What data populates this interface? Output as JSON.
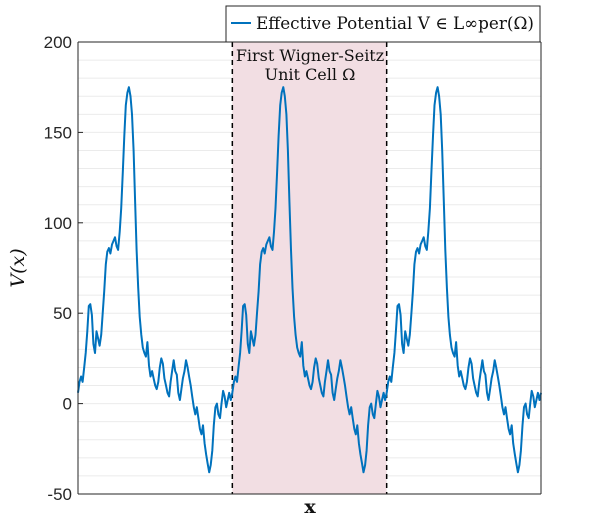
{
  "chart_data": {
    "type": "line",
    "title": "",
    "xlabel": "x",
    "ylabel": "V(x)",
    "ylim": [
      -50,
      200
    ],
    "xlim": [
      0,
      3
    ],
    "yticks": [
      -50,
      0,
      50,
      100,
      150,
      200
    ],
    "ytick_labels": [
      "-50",
      "0",
      "50",
      "100",
      "150",
      "200"
    ],
    "grid": true,
    "legend_position": "top-right",
    "series": [
      {
        "name": "Effective Potential V ∈ L∞per(Ω)",
        "color": "#0072BD",
        "period": 1,
        "points_one_period": [
          [
            0.0,
            6
          ],
          [
            0.01,
            12
          ],
          [
            0.02,
            15
          ],
          [
            0.03,
            12
          ],
          [
            0.04,
            20
          ],
          [
            0.05,
            28
          ],
          [
            0.06,
            40
          ],
          [
            0.07,
            54
          ],
          [
            0.08,
            55
          ],
          [
            0.09,
            49
          ],
          [
            0.1,
            33
          ],
          [
            0.11,
            28
          ],
          [
            0.12,
            40
          ],
          [
            0.13,
            36
          ],
          [
            0.14,
            32
          ],
          [
            0.15,
            38
          ],
          [
            0.16,
            50
          ],
          [
            0.17,
            62
          ],
          [
            0.18,
            77
          ],
          [
            0.19,
            84
          ],
          [
            0.2,
            86
          ],
          [
            0.21,
            83
          ],
          [
            0.22,
            88
          ],
          [
            0.23,
            90
          ],
          [
            0.24,
            92
          ],
          [
            0.25,
            87
          ],
          [
            0.26,
            85
          ],
          [
            0.27,
            95
          ],
          [
            0.28,
            108
          ],
          [
            0.29,
            128
          ],
          [
            0.3,
            148
          ],
          [
            0.31,
            165
          ],
          [
            0.32,
            172
          ],
          [
            0.33,
            175
          ],
          [
            0.34,
            170
          ],
          [
            0.35,
            160
          ],
          [
            0.36,
            140
          ],
          [
            0.37,
            112
          ],
          [
            0.38,
            85
          ],
          [
            0.39,
            64
          ],
          [
            0.4,
            48
          ],
          [
            0.41,
            38
          ],
          [
            0.42,
            31
          ],
          [
            0.43,
            28
          ],
          [
            0.44,
            26
          ],
          [
            0.45,
            34
          ],
          [
            0.46,
            21
          ],
          [
            0.47,
            15
          ],
          [
            0.48,
            18
          ],
          [
            0.49,
            14
          ],
          [
            0.5,
            10
          ],
          [
            0.51,
            8
          ],
          [
            0.52,
            12
          ],
          [
            0.53,
            20
          ],
          [
            0.54,
            25
          ],
          [
            0.55,
            22
          ],
          [
            0.56,
            14
          ],
          [
            0.57,
            10
          ],
          [
            0.58,
            6
          ],
          [
            0.59,
            4
          ],
          [
            0.6,
            12
          ],
          [
            0.61,
            18
          ],
          [
            0.62,
            24
          ],
          [
            0.63,
            18
          ],
          [
            0.64,
            16
          ],
          [
            0.65,
            6
          ],
          [
            0.66,
            2
          ],
          [
            0.67,
            8
          ],
          [
            0.68,
            14
          ],
          [
            0.69,
            18
          ],
          [
            0.7,
            24
          ],
          [
            0.71,
            20
          ],
          [
            0.72,
            15
          ],
          [
            0.73,
            10
          ],
          [
            0.74,
            4
          ],
          [
            0.75,
            -2
          ],
          [
            0.76,
            -6
          ],
          [
            0.77,
            -2
          ],
          [
            0.78,
            -8
          ],
          [
            0.79,
            -14
          ],
          [
            0.8,
            -17
          ],
          [
            0.81,
            -12
          ],
          [
            0.82,
            -22
          ],
          [
            0.83,
            -28
          ],
          [
            0.84,
            -33
          ],
          [
            0.85,
            -38
          ],
          [
            0.86,
            -34
          ],
          [
            0.87,
            -26
          ],
          [
            0.88,
            -12
          ],
          [
            0.89,
            -2
          ],
          [
            0.9,
            0
          ],
          [
            0.91,
            -6
          ],
          [
            0.92,
            -8
          ],
          [
            0.93,
            0
          ],
          [
            0.94,
            7
          ],
          [
            0.95,
            4
          ],
          [
            0.96,
            -2
          ],
          [
            0.97,
            2
          ],
          [
            0.98,
            6
          ],
          [
            0.99,
            2
          ],
          [
            1.0,
            6
          ]
        ]
      }
    ],
    "annotations": [
      {
        "text_line1": "First Wigner-Seitz",
        "text_line2": "Unit Cell Ω",
        "x_range": [
          1,
          2
        ]
      }
    ],
    "shaded_region": {
      "x_range": [
        1,
        2
      ],
      "color": "#F2DEE3"
    }
  },
  "colors": {
    "line": "#0072BD",
    "shade": "#F2DEE3",
    "axis": "#262626",
    "grid": "#EBEBEB",
    "boundary": "#000000"
  }
}
